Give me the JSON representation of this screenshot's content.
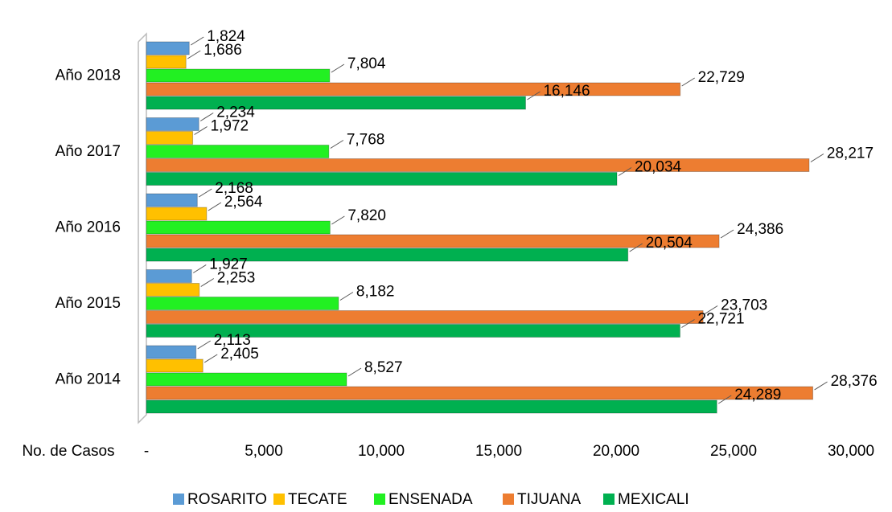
{
  "chart_data": {
    "type": "hbar",
    "categories": [
      "Año 2018",
      "Año 2017",
      "Año 2016",
      "Año 2015",
      "Año 2014"
    ],
    "series": [
      {
        "name": "ROSARITO",
        "color": "#5b9bd5",
        "values": [
          1824,
          2234,
          2168,
          1927,
          2113
        ],
        "value_labels": [
          "1,824",
          "2,234",
          "2,168",
          "1,927",
          "2,113"
        ]
      },
      {
        "name": "TECATE",
        "color": "#ffc000",
        "values": [
          1686,
          1972,
          2564,
          2253,
          2405
        ],
        "value_labels": [
          "1,686",
          "1,972",
          "2,564",
          "2,253",
          "2,405"
        ]
      },
      {
        "name": "ENSENADA",
        "color": "#22f022",
        "values": [
          7804,
          7768,
          7820,
          8182,
          8527
        ],
        "value_labels": [
          "7,804",
          "7,768",
          "7,820",
          "8,182",
          "8,527"
        ]
      },
      {
        "name": "TIJUANA",
        "color": "#ed7d31",
        "values": [
          22729,
          28217,
          24386,
          23703,
          28376
        ],
        "value_labels": [
          "22,729",
          "28,217",
          "24,386",
          "23,703",
          "28,376"
        ]
      },
      {
        "name": "MEXICALI",
        "color": "#00b050",
        "values": [
          16146,
          20034,
          20504,
          22721,
          24289
        ],
        "value_labels": [
          "16,146",
          "20,034",
          "20,504",
          "22,721",
          "24,289"
        ]
      }
    ],
    "xlabel": "No. de Casos",
    "xlim": [
      0,
      30000
    ],
    "xticks": [
      {
        "value": 0,
        "label": "-"
      },
      {
        "value": 5000,
        "label": "5,000"
      },
      {
        "value": 10000,
        "label": "10,000"
      },
      {
        "value": 15000,
        "label": "15,000"
      },
      {
        "value": 20000,
        "label": "20,000"
      },
      {
        "value": 25000,
        "label": "25,000"
      },
      {
        "value": 30000,
        "label": "30,000"
      }
    ],
    "legend": "bottom"
  }
}
